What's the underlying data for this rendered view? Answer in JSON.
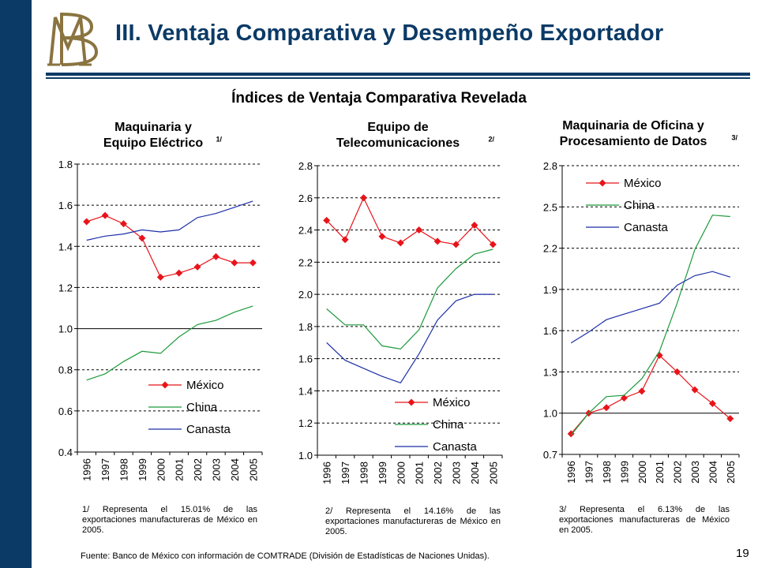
{
  "header": {
    "title": "III. Ventaja Comparativa y Desempeño Exportador",
    "subtitle": "Índices de Ventaja Comparativa Revelada"
  },
  "colors": {
    "mexico": "#e8141a",
    "china": "#1d9a3c",
    "canasta": "#1c2fa8",
    "brand": "#0b3a66",
    "logo": "#8a7440"
  },
  "chart_data": [
    {
      "type": "line",
      "title": "Maquinaria y Equipo Eléctrico",
      "title_note": "1/",
      "x": [
        "1996",
        "1997",
        "1998",
        "1999",
        "2000",
        "2001",
        "2002",
        "2003",
        "2004",
        "2005"
      ],
      "ylim": [
        0.4,
        1.8
      ],
      "yticks": [
        "1.8",
        "1.6",
        "1.4",
        "1.2",
        "1.0",
        "0.8",
        "0.6",
        "0.4"
      ],
      "legend": "bottom-right",
      "series": [
        {
          "name": "México",
          "values": [
            1.52,
            1.55,
            1.51,
            1.44,
            1.25,
            1.27,
            1.3,
            1.35,
            1.32,
            1.32
          ]
        },
        {
          "name": "China",
          "values": [
            0.75,
            0.78,
            0.84,
            0.89,
            0.88,
            0.96,
            1.02,
            1.04,
            1.08,
            1.11
          ]
        },
        {
          "name": "Canasta",
          "values": [
            1.43,
            1.45,
            1.46,
            1.48,
            1.47,
            1.48,
            1.54,
            1.56,
            1.59,
            1.62
          ]
        }
      ],
      "footnote": "1/ Representa el 15.01% de las exportaciones manufactureras de México en 2005."
    },
    {
      "type": "line",
      "title": "Equipo de Telecomunicaciones",
      "title_note": "2/",
      "x": [
        "1996",
        "1997",
        "1998",
        "1999",
        "2000",
        "2001",
        "2002",
        "2003",
        "2004",
        "2005"
      ],
      "ylim": [
        1.0,
        2.8
      ],
      "yticks": [
        "2.8",
        "2.6",
        "2.4",
        "2.2",
        "2.0",
        "1.8",
        "1.6",
        "1.4",
        "1.2",
        "1.0"
      ],
      "legend": "bottom-right",
      "series": [
        {
          "name": "México",
          "values": [
            2.46,
            2.34,
            2.6,
            2.36,
            2.32,
            2.4,
            2.33,
            2.31,
            2.43,
            2.31
          ]
        },
        {
          "name": "China",
          "values": [
            1.91,
            1.81,
            1.81,
            1.68,
            1.66,
            1.78,
            2.04,
            2.16,
            2.25,
            2.28
          ]
        },
        {
          "name": "Canasta",
          "values": [
            1.7,
            1.59,
            1.54,
            1.49,
            1.45,
            1.63,
            1.84,
            1.96,
            2.0,
            2.0
          ]
        }
      ],
      "footnote": "2/ Representa el 14.16% de las exportaciones manufactureras de México en 2005."
    },
    {
      "type": "line",
      "title": "Maquinaria de Oficina y Procesamiento de Datos",
      "title_note": "3/",
      "x": [
        "1996",
        "1997",
        "1998",
        "1999",
        "2000",
        "2001",
        "2002",
        "2003",
        "2004",
        "2005"
      ],
      "ylim": [
        0.7,
        2.8
      ],
      "yticks": [
        "2.8",
        "2.5",
        "2.2",
        "1.9",
        "1.6",
        "1.3",
        "1.0",
        "0.7"
      ],
      "legend": "top-left",
      "series": [
        {
          "name": "México",
          "values": [
            0.85,
            1.0,
            1.04,
            1.11,
            1.16,
            1.42,
            1.3,
            1.17,
            1.07,
            0.96
          ]
        },
        {
          "name": "China",
          "values": [
            0.84,
            1.0,
            1.12,
            1.13,
            1.25,
            1.45,
            1.8,
            2.19,
            2.44,
            2.43
          ]
        },
        {
          "name": "Canasta",
          "values": [
            1.51,
            1.59,
            1.68,
            1.72,
            1.76,
            1.8,
            1.93,
            2.0,
            2.03,
            1.99
          ]
        }
      ],
      "footnote": "3/ Representa el 6.13% de las exportaciones manufactureras de México en 2005."
    }
  ],
  "footer": {
    "source": "Fuente: Banco de México con información de COMTRADE (División de Estadísticas de Naciones Unidas).",
    "page_number": "19"
  }
}
